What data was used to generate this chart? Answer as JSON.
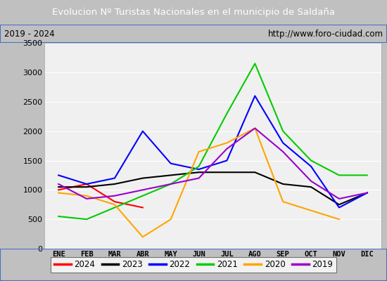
{
  "title": "Evolucion Nº Turistas Nacionales en el municipio de Saldaña",
  "subtitle_left": "2019 - 2024",
  "subtitle_right": "http://www.foro-ciudad.com",
  "months": [
    "ENE",
    "FEB",
    "MAR",
    "ABR",
    "MAY",
    "JUN",
    "JUL",
    "AGO",
    "SEP",
    "OCT",
    "NOV",
    "DIC"
  ],
  "series": {
    "2024": [
      1000,
      1100,
      800,
      700,
      null,
      null,
      null,
      null,
      null,
      null,
      null,
      null
    ],
    "2023": [
      1050,
      1050,
      1100,
      1200,
      1250,
      1300,
      1300,
      1300,
      1100,
      1050,
      750,
      950
    ],
    "2022": [
      1250,
      1100,
      1200,
      2000,
      1450,
      1350,
      1500,
      2600,
      1800,
      1400,
      700,
      950
    ],
    "2021": [
      550,
      500,
      700,
      900,
      1100,
      1400,
      2300,
      3150,
      2000,
      1500,
      1250,
      1250
    ],
    "2020": [
      950,
      900,
      750,
      200,
      500,
      1650,
      1800,
      2050,
      800,
      650,
      500,
      null
    ],
    "2019": [
      1100,
      850,
      900,
      1000,
      1100,
      1200,
      1700,
      2050,
      1650,
      1150,
      850,
      950
    ]
  },
  "colors": {
    "2024": "#ff0000",
    "2023": "#000000",
    "2022": "#0000ff",
    "2021": "#00cc00",
    "2020": "#ffa500",
    "2019": "#9900cc"
  },
  "ylim": [
    0,
    3500
  ],
  "yticks": [
    0,
    500,
    1000,
    1500,
    2000,
    2500,
    3000,
    3500
  ],
  "title_bg_color": "#4472c4",
  "title_fg_color": "#ffffff",
  "plot_bg_color": "#f0f0f0",
  "outer_bg_color": "#c0c0c0",
  "grid_color": "#ffffff",
  "border_color": "#4472c4",
  "legend_years": [
    "2024",
    "2023",
    "2022",
    "2021",
    "2020",
    "2019"
  ]
}
